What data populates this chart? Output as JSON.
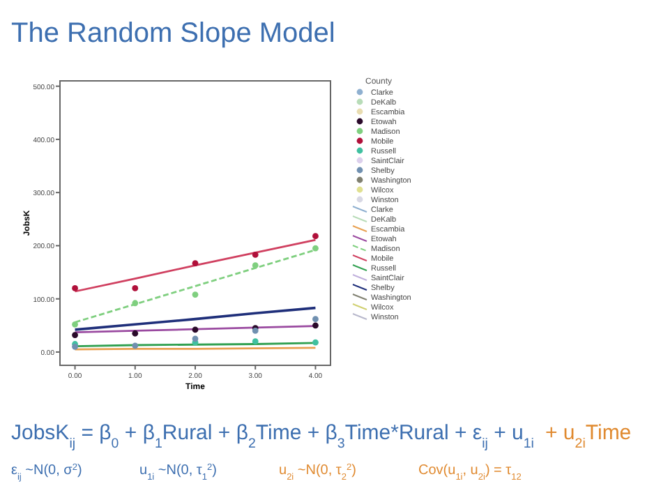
{
  "chart_data": {
    "type": "scatter",
    "title": "The Random Slope Model",
    "xlabel": "Time",
    "ylabel": "JobsK",
    "legend_title": "County",
    "legend": "right",
    "marker": "circle",
    "grid": false,
    "x": [
      0,
      1,
      2,
      3,
      4
    ],
    "xlim": [
      -0.25,
      4.25
    ],
    "ylim": [
      -25,
      510
    ],
    "xticks": [
      {
        "value": 0,
        "label": "0.00"
      },
      {
        "value": 1,
        "label": "1.00"
      },
      {
        "value": 2,
        "label": "2.00"
      },
      {
        "value": 3,
        "label": "3.00"
      },
      {
        "value": 4,
        "label": "4.00"
      }
    ],
    "yticks": [
      {
        "value": 0,
        "label": "0.00"
      },
      {
        "value": 100,
        "label": "100.00"
      },
      {
        "value": 200,
        "label": "200.00"
      },
      {
        "value": 300,
        "label": "300.00"
      },
      {
        "value": 400,
        "label": "400.00"
      },
      {
        "value": 500,
        "label": "500.00"
      }
    ],
    "series": [
      {
        "name": "Clarke",
        "color": "#8fb0d0",
        "values": [
          null,
          null,
          null,
          null,
          null
        ]
      },
      {
        "name": "DeKalb",
        "color": "#b8dcb8",
        "values": [
          null,
          null,
          null,
          null,
          null
        ]
      },
      {
        "name": "Escambia",
        "color": "#e8dcb0",
        "values": [
          null,
          null,
          null,
          null,
          null
        ]
      },
      {
        "name": "Etowah",
        "color": "#2a0a2a",
        "values": [
          32,
          35,
          42,
          45,
          50
        ]
      },
      {
        "name": "Madison",
        "color": "#7fcf7f",
        "values": [
          52,
          92,
          108,
          163,
          195
        ]
      },
      {
        "name": "Mobile",
        "color": "#b0103a",
        "values": [
          120,
          120,
          167,
          183,
          218
        ]
      },
      {
        "name": "Russell",
        "color": "#40c0a0",
        "values": [
          15,
          null,
          18,
          20,
          18
        ]
      },
      {
        "name": "SaintClair",
        "color": "#dcd0ec",
        "values": [
          null,
          null,
          null,
          null,
          null
        ]
      },
      {
        "name": "Shelby",
        "color": "#7090b0",
        "values": [
          10,
          12,
          25,
          40,
          62
        ]
      },
      {
        "name": "Washington",
        "color": "#808070",
        "values": [
          null,
          null,
          null,
          null,
          null
        ]
      },
      {
        "name": "Wilcox",
        "color": "#e0e090",
        "values": [
          null,
          null,
          null,
          null,
          null
        ]
      },
      {
        "name": "Winston",
        "color": "#d8d8e4",
        "values": [
          null,
          null,
          null,
          null,
          null
        ]
      },
      {
        "name": "Clarke",
        "type": "line",
        "marker": "none",
        "color": "#8fb0d0",
        "values": [
          null,
          null,
          null,
          null,
          null
        ]
      },
      {
        "name": "DeKalb",
        "type": "line",
        "marker": "none",
        "color": "#b8dcb8",
        "values": [
          null,
          null,
          null,
          null,
          null
        ]
      },
      {
        "name": "Escambia",
        "type": "line",
        "marker": "none",
        "color": "#e8a050",
        "values": [
          5,
          6,
          6,
          7,
          8
        ]
      },
      {
        "name": "Etowah",
        "type": "line",
        "marker": "none",
        "color": "#9a4aa0",
        "values": [
          37,
          40,
          43,
          46,
          49
        ]
      },
      {
        "name": "Madison",
        "type": "line",
        "marker": "none",
        "color": "#7fcf7f",
        "line_style": "dashed",
        "values": [
          56,
          90,
          124,
          158,
          192
        ]
      },
      {
        "name": "Mobile",
        "type": "line",
        "marker": "none",
        "color": "#d04060",
        "values": [
          114,
          138,
          163,
          187,
          211
        ]
      },
      {
        "name": "Russell",
        "type": "line",
        "marker": "none",
        "color": "#30a050",
        "values": [
          11,
          13,
          14,
          15,
          17
        ]
      },
      {
        "name": "SaintClair",
        "type": "line",
        "marker": "none",
        "color": "#c0b0dc",
        "values": [
          null,
          null,
          null,
          null,
          null
        ]
      },
      {
        "name": "Shelby",
        "type": "line",
        "marker": "none",
        "color": "#1f2f7a",
        "values": [
          42,
          52,
          62,
          73,
          83
        ]
      },
      {
        "name": "Washington",
        "type": "line",
        "marker": "none",
        "color": "#808070",
        "values": [
          null,
          null,
          null,
          null,
          null
        ]
      },
      {
        "name": "Wilcox",
        "type": "line",
        "marker": "none",
        "color": "#d0d070",
        "values": [
          null,
          null,
          null,
          null,
          null
        ]
      },
      {
        "name": "Winston",
        "type": "line",
        "marker": "none",
        "color": "#b8b8cc",
        "values": [
          null,
          null,
          null,
          null,
          null
        ]
      }
    ],
    "annotations": [
      "JobsK$_{ij}$ = β$_{0}$ + β$_{1}$Rural + β$_{2}$Time + β$_{3}$Time*Rural + ε$_{ij}$ + u$_{1i}$",
      "+ u$_{2i}$Time",
      "ε$_{ij}$ ~N(0, σ$^{2}$)",
      "u$_{1i}$ ~N(0, τ$_{1}$$^{2}$)",
      "u$_{2i}$ ~N(0, τ$_{2}$$^{2}$)",
      "Cov(u$_{1i}$, u$_{2i}$) = τ$_{12}$"
    ]
  }
}
